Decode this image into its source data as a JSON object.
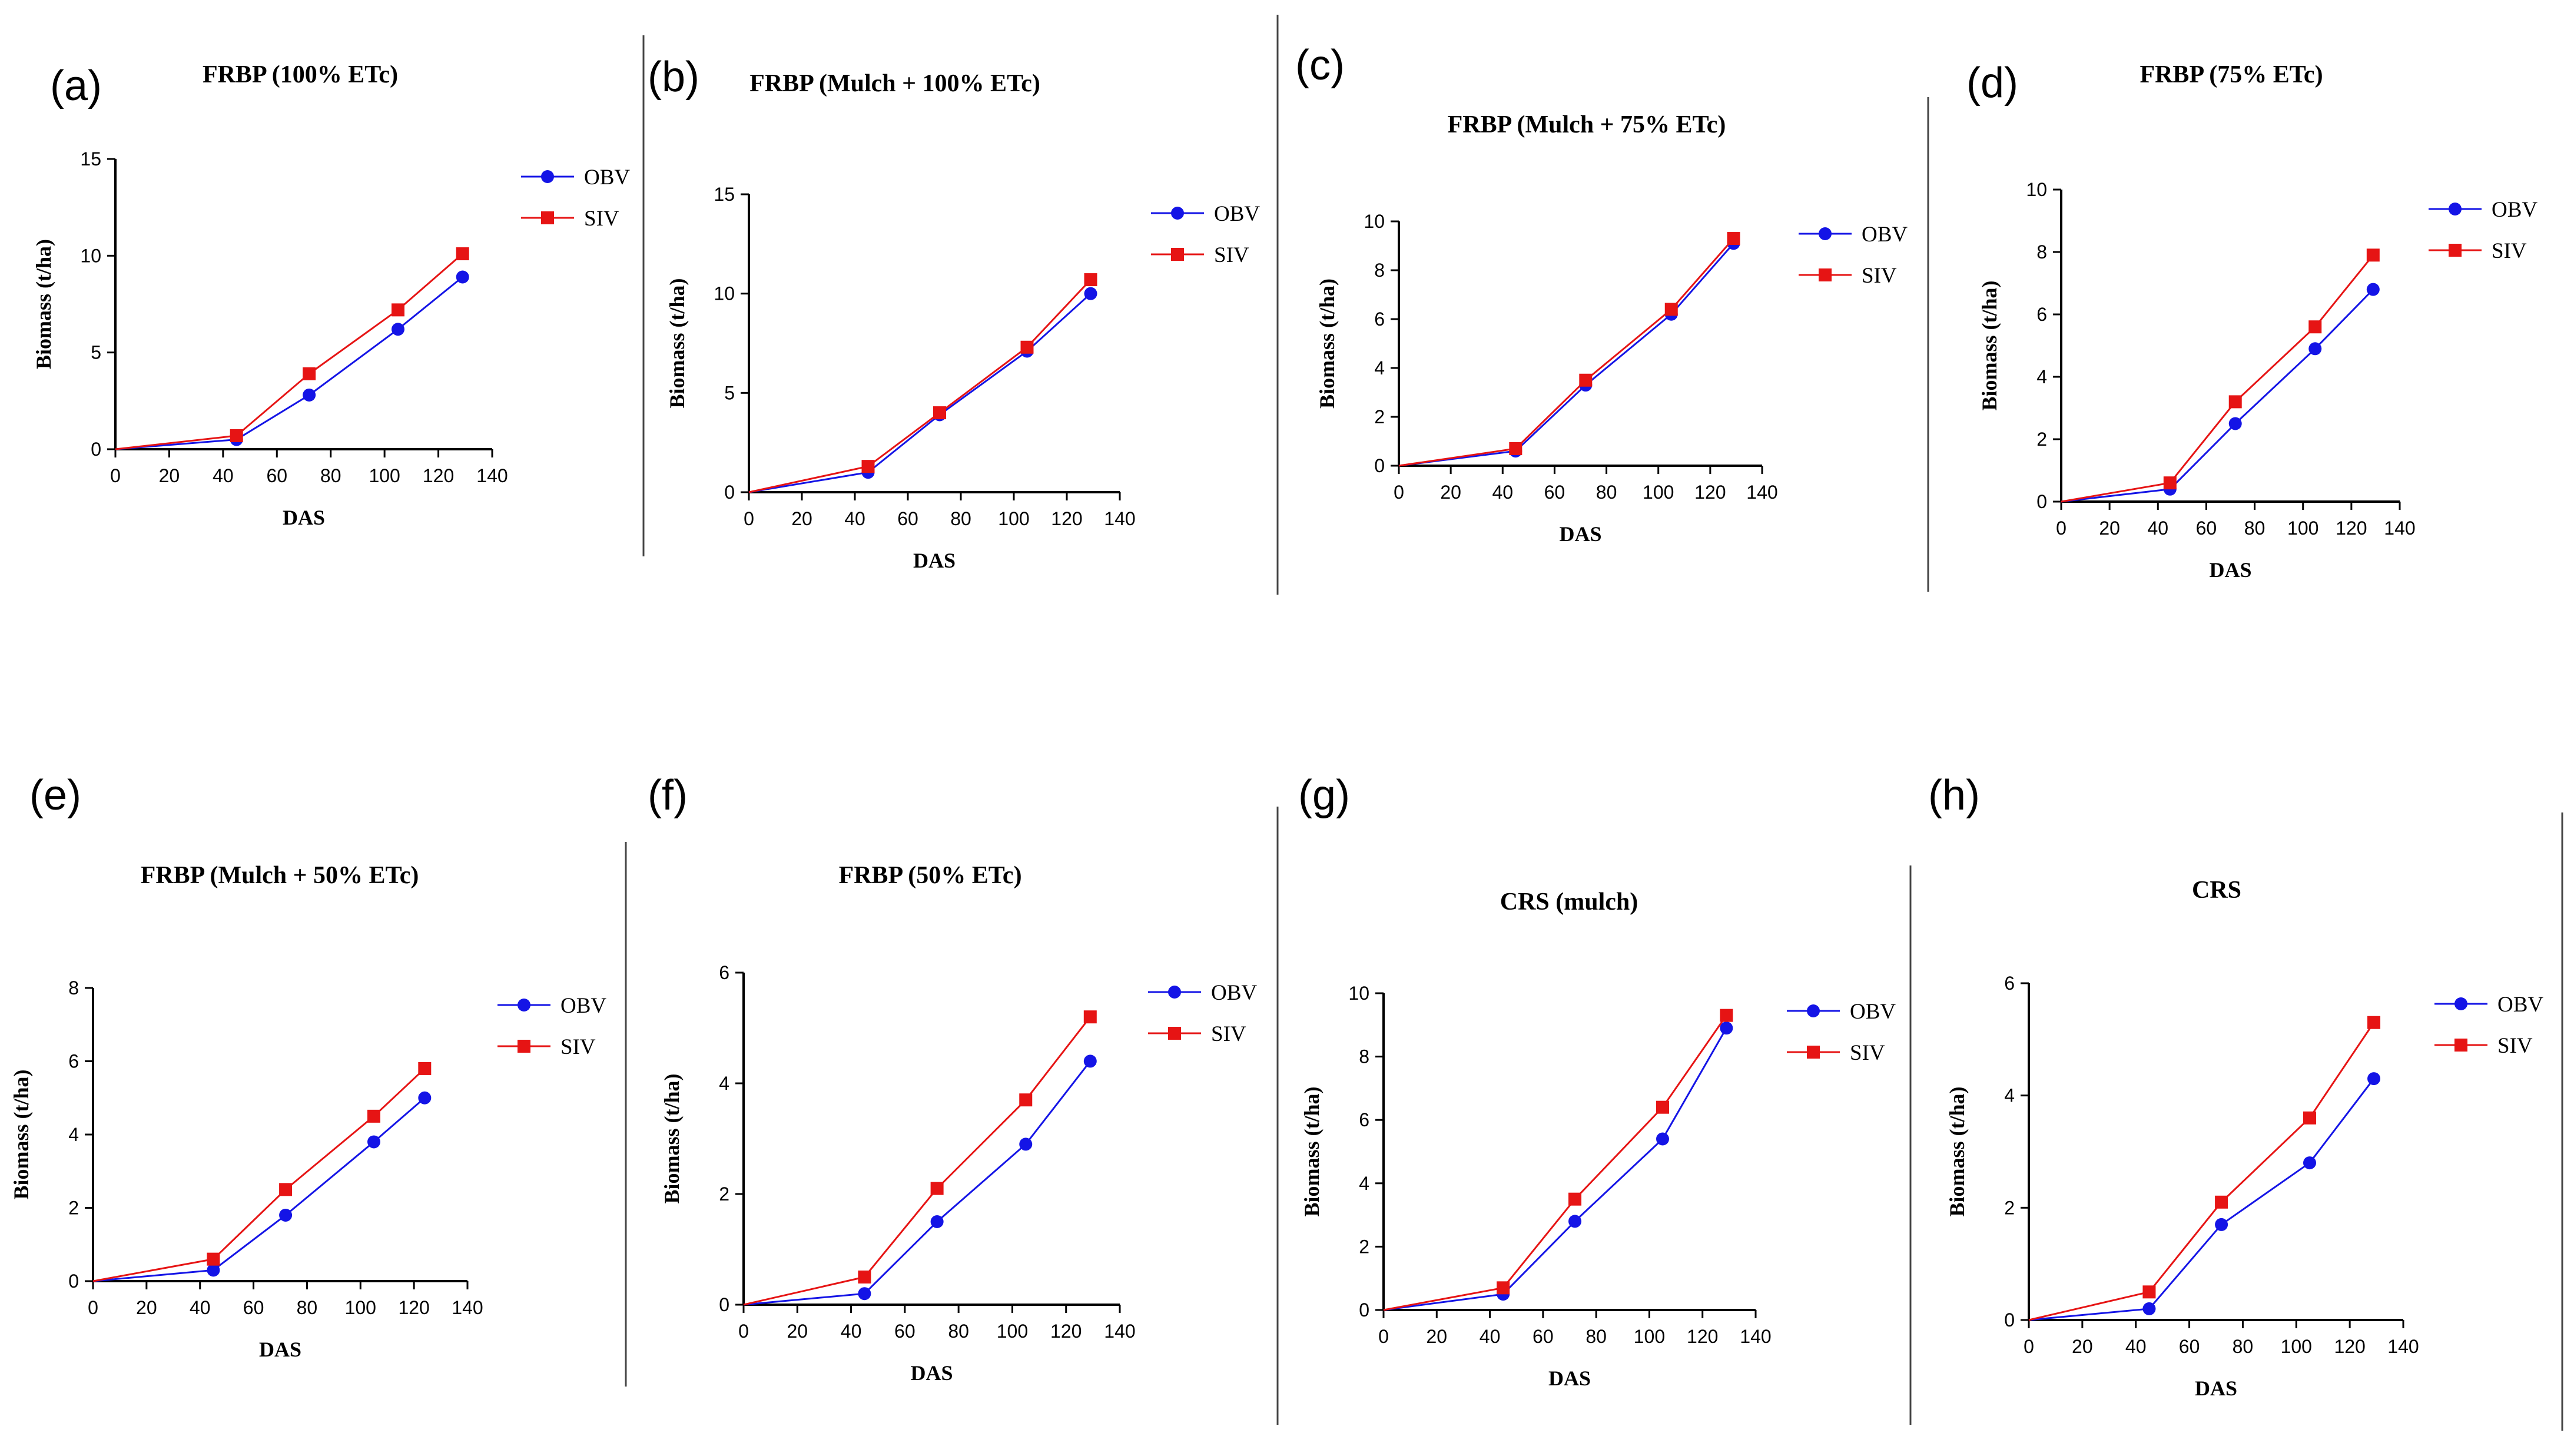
{
  "colors": {
    "obv": "#1414e6",
    "siv": "#e61414",
    "axis": "#000000",
    "divider": "#444444"
  },
  "chart_data": [
    {
      "panel": "(a)",
      "type": "line",
      "title": "FRBP (100% ETc)",
      "xlabel": "DAS",
      "ylabel": "Biomass (t/ha)",
      "xlim": [
        0,
        140
      ],
      "ylim": [
        0,
        15
      ],
      "xticks": [
        0,
        20,
        40,
        60,
        80,
        100,
        120,
        140
      ],
      "yticks": [
        0,
        5,
        10,
        15
      ],
      "series": [
        {
          "name": "OBV",
          "marker": "circle",
          "x": [
            0,
            45,
            72,
            105,
            129
          ],
          "values": [
            0,
            0.5,
            2.8,
            6.2,
            8.9
          ]
        },
        {
          "name": "SIV",
          "marker": "square",
          "x": [
            0,
            45,
            72,
            105,
            129
          ],
          "values": [
            0,
            0.7,
            3.9,
            7.2,
            10.1
          ]
        }
      ]
    },
    {
      "panel": "(b)",
      "type": "line",
      "title": "FRBP (Mulch + 100% ETc)",
      "xlabel": "DAS",
      "ylabel": "Biomass (t/ha)",
      "xlim": [
        0,
        140
      ],
      "ylim": [
        0,
        15
      ],
      "xticks": [
        0,
        20,
        40,
        60,
        80,
        100,
        120,
        140
      ],
      "yticks": [
        0,
        5,
        10,
        15
      ],
      "series": [
        {
          "name": "OBV",
          "marker": "circle",
          "x": [
            0,
            45,
            72,
            105,
            129
          ],
          "values": [
            0,
            1.0,
            3.9,
            7.1,
            10.0
          ]
        },
        {
          "name": "SIV",
          "marker": "square",
          "x": [
            0,
            45,
            72,
            105,
            129
          ],
          "values": [
            0,
            1.3,
            4.0,
            7.3,
            10.7
          ]
        }
      ]
    },
    {
      "panel": "(c)",
      "type": "line",
      "title": "FRBP (Mulch + 75% ETc)",
      "xlabel": "DAS",
      "ylabel": "Biomass (t/ha)",
      "xlim": [
        0,
        140
      ],
      "ylim": [
        0,
        10
      ],
      "xticks": [
        0,
        20,
        40,
        60,
        80,
        100,
        120,
        140
      ],
      "yticks": [
        0,
        2,
        4,
        6,
        8,
        10
      ],
      "series": [
        {
          "name": "OBV",
          "marker": "circle",
          "x": [
            0,
            45,
            72,
            105,
            129
          ],
          "values": [
            0,
            0.6,
            3.3,
            6.2,
            9.1
          ]
        },
        {
          "name": "SIV",
          "marker": "square",
          "x": [
            0,
            45,
            72,
            105,
            129
          ],
          "values": [
            0,
            0.7,
            3.5,
            6.4,
            9.3
          ]
        }
      ]
    },
    {
      "panel": "(d)",
      "type": "line",
      "title": "FRBP (75% ETc)",
      "xlabel": "DAS",
      "ylabel": "Biomass (t/ha)",
      "xlim": [
        0,
        140
      ],
      "ylim": [
        0,
        10
      ],
      "xticks": [
        0,
        20,
        40,
        60,
        80,
        100,
        120,
        140
      ],
      "yticks": [
        0,
        2,
        4,
        6,
        8,
        10
      ],
      "series": [
        {
          "name": "OBV",
          "marker": "circle",
          "x": [
            0,
            45,
            72,
            105,
            129
          ],
          "values": [
            0,
            0.4,
            2.5,
            4.9,
            6.8
          ]
        },
        {
          "name": "SIV",
          "marker": "square",
          "x": [
            0,
            45,
            72,
            105,
            129
          ],
          "values": [
            0,
            0.6,
            3.2,
            5.6,
            7.9
          ]
        }
      ]
    },
    {
      "panel": "(e)",
      "type": "line",
      "title": "FRBP (Mulch + 50% ETc)",
      "xlabel": "DAS",
      "ylabel": "Biomass (t/ha)",
      "xlim": [
        0,
        140
      ],
      "ylim": [
        0,
        8
      ],
      "xticks": [
        0,
        20,
        40,
        60,
        80,
        100,
        120,
        140
      ],
      "yticks": [
        0,
        2,
        4,
        6,
        8
      ],
      "series": [
        {
          "name": "OBV",
          "marker": "circle",
          "x": [
            0,
            45,
            72,
            105,
            124
          ],
          "values": [
            0,
            0.3,
            1.8,
            3.8,
            5.0
          ]
        },
        {
          "name": "SIV",
          "marker": "square",
          "x": [
            0,
            45,
            72,
            105,
            124
          ],
          "values": [
            0,
            0.6,
            2.5,
            4.5,
            5.8
          ]
        }
      ]
    },
    {
      "panel": "(f)",
      "type": "line",
      "title": "FRBP (50% ETc)",
      "xlabel": "DAS",
      "ylabel": "Biomass (t/ha)",
      "xlim": [
        0,
        140
      ],
      "ylim": [
        0,
        6
      ],
      "xticks": [
        0,
        20,
        40,
        60,
        80,
        100,
        120,
        140
      ],
      "yticks": [
        0,
        2,
        4,
        6
      ],
      "series": [
        {
          "name": "OBV",
          "marker": "circle",
          "x": [
            0,
            45,
            72,
            105,
            129
          ],
          "values": [
            0,
            0.2,
            1.5,
            2.9,
            4.4
          ]
        },
        {
          "name": "SIV",
          "marker": "square",
          "x": [
            0,
            45,
            72,
            105,
            129
          ],
          "values": [
            0,
            0.5,
            2.1,
            3.7,
            5.2
          ]
        }
      ]
    },
    {
      "panel": "(g)",
      "type": "line",
      "title": "CRS (mulch)",
      "xlabel": "DAS",
      "ylabel": "Biomass (t/ha)",
      "xlim": [
        0,
        140
      ],
      "ylim": [
        0,
        10
      ],
      "xticks": [
        0,
        20,
        40,
        60,
        80,
        100,
        120,
        140
      ],
      "yticks": [
        0,
        2,
        4,
        6,
        8,
        10
      ],
      "series": [
        {
          "name": "OBV",
          "marker": "circle",
          "x": [
            0,
            45,
            72,
            105,
            129
          ],
          "values": [
            0,
            0.5,
            2.8,
            5.4,
            8.9
          ]
        },
        {
          "name": "SIV",
          "marker": "square",
          "x": [
            0,
            45,
            72,
            105,
            129
          ],
          "values": [
            0,
            0.7,
            3.5,
            6.4,
            9.3
          ]
        }
      ]
    },
    {
      "panel": "(h)",
      "type": "line",
      "title": "CRS",
      "xlabel": "DAS",
      "ylabel": "Biomass (t/ha)",
      "xlim": [
        0,
        140
      ],
      "ylim": [
        0,
        6
      ],
      "xticks": [
        0,
        20,
        40,
        60,
        80,
        100,
        120,
        140
      ],
      "yticks": [
        0,
        2,
        4,
        6
      ],
      "series": [
        {
          "name": "OBV",
          "marker": "circle",
          "x": [
            0,
            45,
            72,
            105,
            129
          ],
          "values": [
            0,
            0.2,
            1.7,
            2.8,
            4.3
          ]
        },
        {
          "name": "SIV",
          "marker": "square",
          "x": [
            0,
            45,
            72,
            105,
            129
          ],
          "values": [
            0,
            0.5,
            2.1,
            3.6,
            5.3
          ]
        }
      ]
    }
  ]
}
